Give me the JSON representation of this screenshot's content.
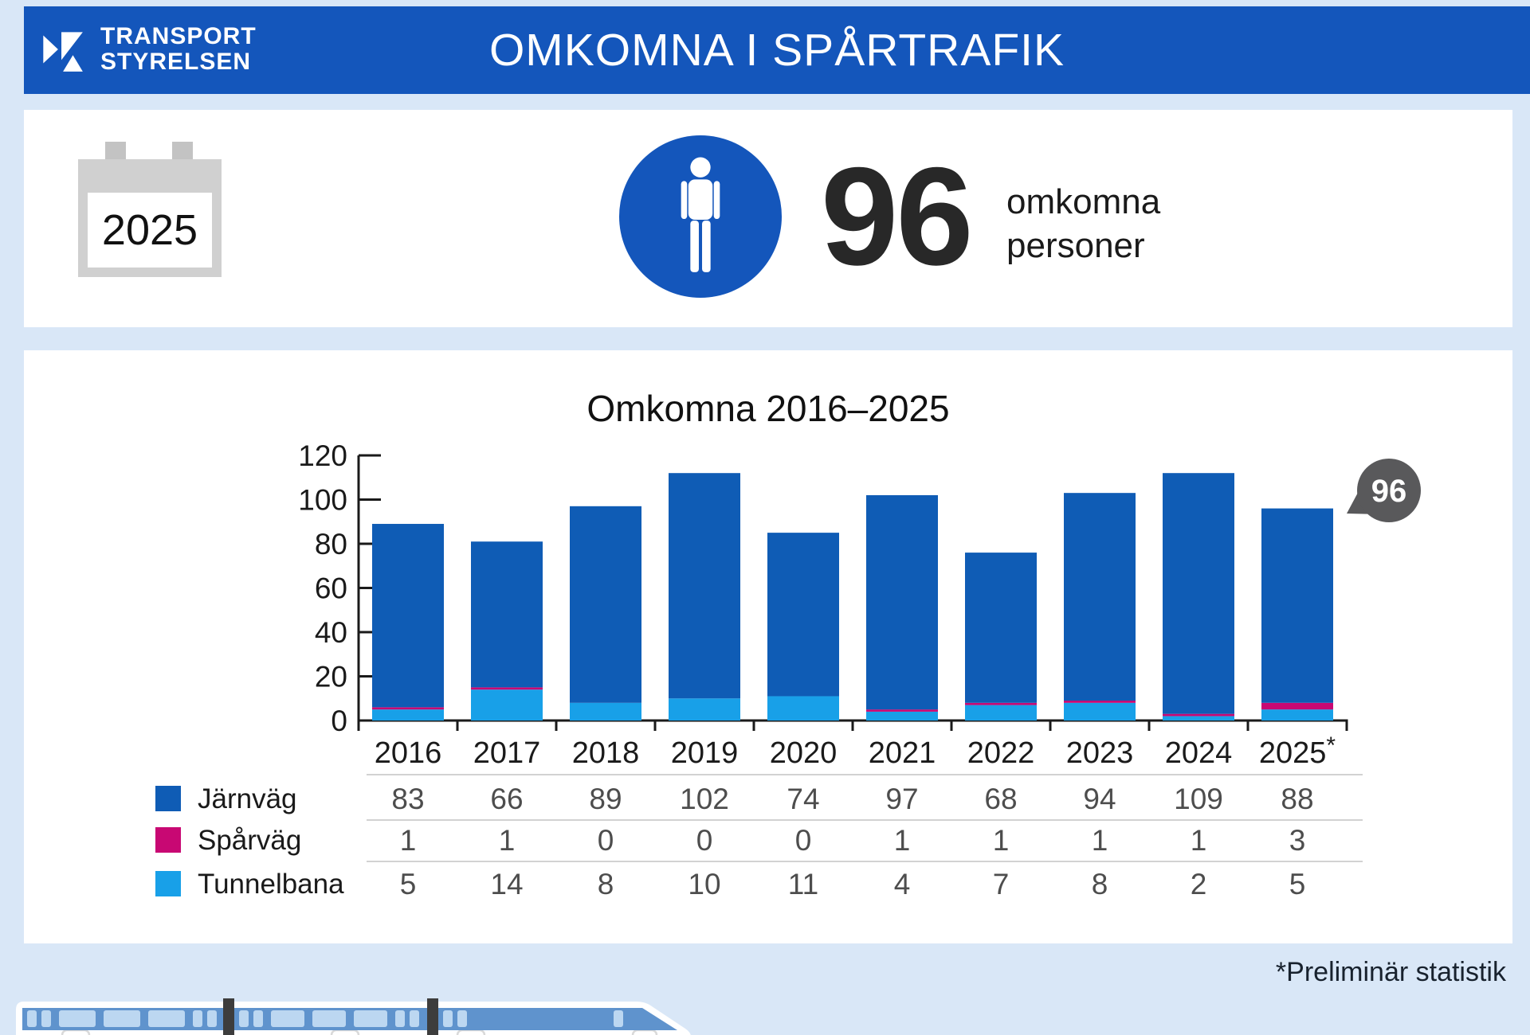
{
  "header": {
    "brand_line1": "TRANSPORT",
    "brand_line2": "STYRELSEN",
    "title": "OMKOMNA I SPÅRTRAFIK"
  },
  "summary": {
    "year": "2025",
    "count": "96",
    "label_line1": "omkomna",
    "label_line2": "personer"
  },
  "chart_data": {
    "type": "bar",
    "stacked": true,
    "title": "Omkomna 2016–2025",
    "categories": [
      "2016",
      "2017",
      "2018",
      "2019",
      "2020",
      "2021",
      "2022",
      "2023",
      "2024",
      "2025"
    ],
    "preliminary_marker_on": "2025",
    "preliminary_marker": "*",
    "series": [
      {
        "name": "Järnväg",
        "color": "#0f5cb5",
        "values": [
          83,
          66,
          89,
          102,
          74,
          97,
          68,
          94,
          109,
          88
        ]
      },
      {
        "name": "Spårväg",
        "color": "#c80873",
        "values": [
          1,
          1,
          0,
          0,
          0,
          1,
          1,
          1,
          1,
          3
        ]
      },
      {
        "name": "Tunnelbana",
        "color": "#18a0e8",
        "values": [
          5,
          14,
          8,
          10,
          11,
          4,
          7,
          8,
          2,
          5
        ]
      }
    ],
    "stack_order_bottom_to_top": [
      "Tunnelbana",
      "Spårväg",
      "Järnväg"
    ],
    "totals": [
      89,
      81,
      97,
      112,
      85,
      102,
      76,
      103,
      112,
      96
    ],
    "ylim": [
      0,
      120
    ],
    "yticks": [
      0,
      20,
      40,
      60,
      80,
      100,
      120
    ],
    "annotation": {
      "text": "96",
      "target_category": "2025"
    },
    "legend_position": "bottom-left",
    "values_table_shown": true
  },
  "footnote": "*Preliminär statistik",
  "colors": {
    "brand_blue": "#1456bb",
    "jarnvag_blue": "#0f5cb5",
    "sparvag_magenta": "#c80873",
    "tunnelbana_blue": "#18a0e8",
    "bubble_gray": "#59595b",
    "page_background": "#d9e7f7"
  }
}
